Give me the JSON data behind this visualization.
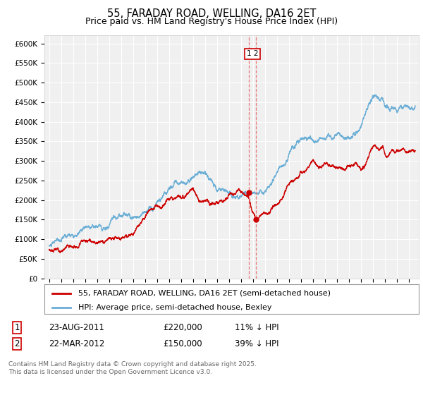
{
  "title": "55, FARADAY ROAD, WELLING, DA16 2ET",
  "subtitle": "Price paid vs. HM Land Registry's House Price Index (HPI)",
  "ylim": [
    0,
    620000
  ],
  "yticks": [
    0,
    50000,
    100000,
    150000,
    200000,
    250000,
    300000,
    350000,
    400000,
    450000,
    500000,
    550000,
    600000
  ],
  "ytick_labels": [
    "£0",
    "£50K",
    "£100K",
    "£150K",
    "£200K",
    "£250K",
    "£300K",
    "£350K",
    "£400K",
    "£450K",
    "£500K",
    "£550K",
    "£600K"
  ],
  "hpi_color": "#6baed6",
  "price_color": "#cc0000",
  "vline_color": "#e87878",
  "transaction1_date": 2011.645,
  "transaction2_date": 2012.22,
  "transaction1_price": 220000,
  "transaction2_price": 150000,
  "marker_size": 5,
  "legend_label1": "55, FARADAY ROAD, WELLING, DA16 2ET (semi-detached house)",
  "legend_label2": "HPI: Average price, semi-detached house, Bexley",
  "table_row1": [
    "1",
    "23-AUG-2011",
    "£220,000",
    "11% ↓ HPI"
  ],
  "table_row2": [
    "2",
    "22-MAR-2012",
    "£150,000",
    "39% ↓ HPI"
  ],
  "copyright": "Contains HM Land Registry data © Crown copyright and database right 2025.\nThis data is licensed under the Open Government Licence v3.0.",
  "bg_color": "#ffffff",
  "plot_bg_color": "#f0f0f0",
  "grid_color": "#ffffff",
  "title_fontsize": 10.5,
  "subtitle_fontsize": 9,
  "tick_fontsize": 7.5,
  "legend_fontsize": 8,
  "table_fontsize": 8.5,
  "copyright_fontsize": 6.5
}
